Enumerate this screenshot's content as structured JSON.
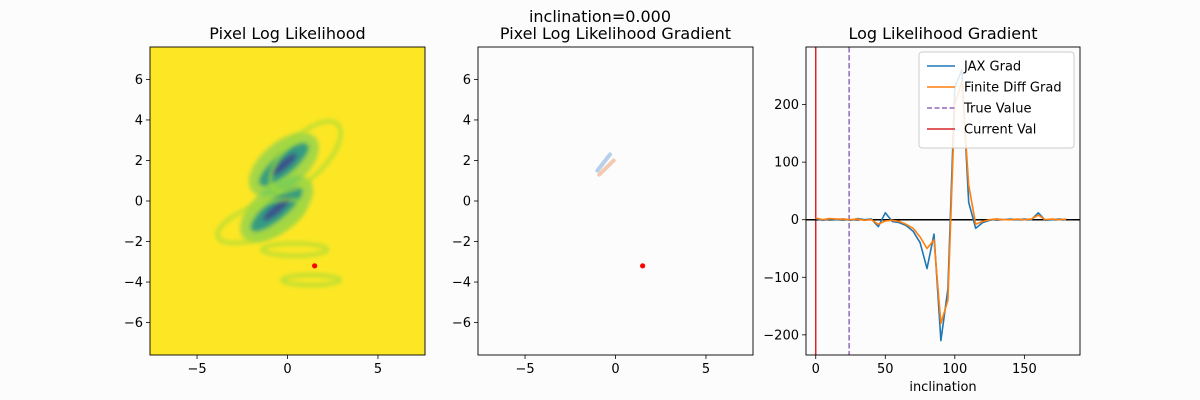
{
  "suptitle": "inclination=0.000",
  "chart_data": [
    {
      "type": "heatmap",
      "title": "Pixel Log Likelihood",
      "xlabel": "",
      "ylabel": "",
      "xlim": [
        -7.6,
        7.6
      ],
      "ylim": [
        -7.6,
        7.6
      ],
      "xticks": [
        -5,
        0,
        5
      ],
      "yticks": [
        -6,
        -4,
        -2,
        0,
        2,
        4,
        6
      ],
      "colormap": "viridis",
      "background_color": "#fde725",
      "features": [
        {
          "kind": "arc",
          "cx": -0.2,
          "cy": 1.8,
          "rx": 2.0,
          "ry": 0.7,
          "angle": 40,
          "intensity": "high"
        },
        {
          "kind": "arc",
          "cx": -0.6,
          "cy": -0.4,
          "rx": 2.1,
          "ry": 0.7,
          "angle": 40,
          "intensity": "high"
        },
        {
          "kind": "faint-arc",
          "cx": 1.0,
          "cy": 2.2,
          "rx": 2.5,
          "ry": 1.0,
          "angle": 45,
          "intensity": "low"
        },
        {
          "kind": "faint-arc",
          "cx": -1.5,
          "cy": -1.0,
          "rx": 2.5,
          "ry": 0.8,
          "angle": 20,
          "intensity": "low"
        },
        {
          "kind": "faint-arc",
          "cx": 0.4,
          "cy": -2.4,
          "rx": 1.8,
          "ry": 0.3,
          "angle": 0,
          "intensity": "low"
        },
        {
          "kind": "faint-arc",
          "cx": 1.3,
          "cy": -3.9,
          "rx": 1.6,
          "ry": 0.25,
          "angle": 0,
          "intensity": "low"
        }
      ],
      "marker": {
        "x": 1.5,
        "y": -3.2,
        "color": "#ff0000"
      }
    },
    {
      "type": "heatmap",
      "title": "Pixel Log Likelihood Gradient",
      "xlabel": "",
      "ylabel": "",
      "xlim": [
        -7.6,
        7.6
      ],
      "ylim": [
        -7.6,
        7.6
      ],
      "xticks": [
        -5,
        0,
        5
      ],
      "yticks": [
        -6,
        -4,
        -2,
        0,
        2,
        4,
        6
      ],
      "colormap": "diverging",
      "background_color": "#fcfcfc",
      "features": [
        {
          "kind": "streak",
          "x1": -1.0,
          "y1": 1.5,
          "x2": -0.3,
          "y2": 2.3,
          "color": "#aac8e8"
        },
        {
          "kind": "streak",
          "x1": -0.9,
          "y1": 1.3,
          "x2": -0.1,
          "y2": 2.0,
          "color": "#f2c2a4"
        }
      ],
      "marker": {
        "x": 1.5,
        "y": -3.2,
        "color": "#ff0000"
      }
    },
    {
      "type": "line",
      "title": "Log Likelihood Gradient",
      "xlabel": "inclination",
      "ylabel": "",
      "xlim": [
        -7,
        190
      ],
      "ylim": [
        -235,
        300
      ],
      "xticks": [
        0,
        50,
        100,
        150
      ],
      "yticks": [
        -200,
        -100,
        0,
        100,
        200
      ],
      "legend_position": "top-right",
      "series": [
        {
          "name": "JAX Grad",
          "color": "#1f77b4",
          "x": [
            0,
            5,
            10,
            15,
            20,
            25,
            30,
            35,
            40,
            45,
            50,
            55,
            60,
            65,
            70,
            75,
            80,
            85,
            90,
            95,
            100,
            105,
            110,
            115,
            120,
            125,
            130,
            135,
            140,
            145,
            150,
            155,
            160,
            165,
            170,
            175,
            180
          ],
          "y": [
            2,
            -1,
            1,
            0,
            1,
            -1,
            2,
            0,
            1,
            -12,
            12,
            -3,
            -5,
            -10,
            -20,
            -40,
            -85,
            -25,
            -210,
            -120,
            230,
            260,
            30,
            -15,
            -5,
            -1,
            1,
            0,
            1,
            0,
            1,
            0,
            12,
            -1,
            0,
            1,
            0
          ]
        },
        {
          "name": "Finite Diff Grad",
          "color": "#ff7f0e",
          "x": [
            0,
            5,
            10,
            15,
            20,
            25,
            30,
            35,
            40,
            45,
            50,
            55,
            60,
            65,
            70,
            75,
            80,
            85,
            90,
            95,
            100,
            105,
            110,
            115,
            120,
            125,
            130,
            135,
            140,
            145,
            150,
            155,
            160,
            165,
            170,
            175,
            180
          ],
          "y": [
            3,
            0,
            2,
            1,
            1,
            0,
            1,
            -1,
            0,
            -8,
            -2,
            -1,
            -3,
            -8,
            -15,
            -30,
            -50,
            -35,
            -180,
            -140,
            200,
            240,
            60,
            -8,
            -3,
            0,
            1,
            0,
            0,
            1,
            0,
            1,
            8,
            0,
            1,
            0,
            1
          ]
        }
      ],
      "reference_lines": [
        {
          "name": "True Value",
          "orientation": "vertical",
          "x": 24,
          "color": "#9467bd",
          "style": "dashed"
        },
        {
          "name": "Current Val",
          "orientation": "vertical",
          "x": 0,
          "color": "#d62728",
          "style": "solid"
        },
        {
          "name": "",
          "orientation": "horizontal",
          "y": 0,
          "color": "#000000",
          "style": "solid"
        }
      ]
    }
  ]
}
